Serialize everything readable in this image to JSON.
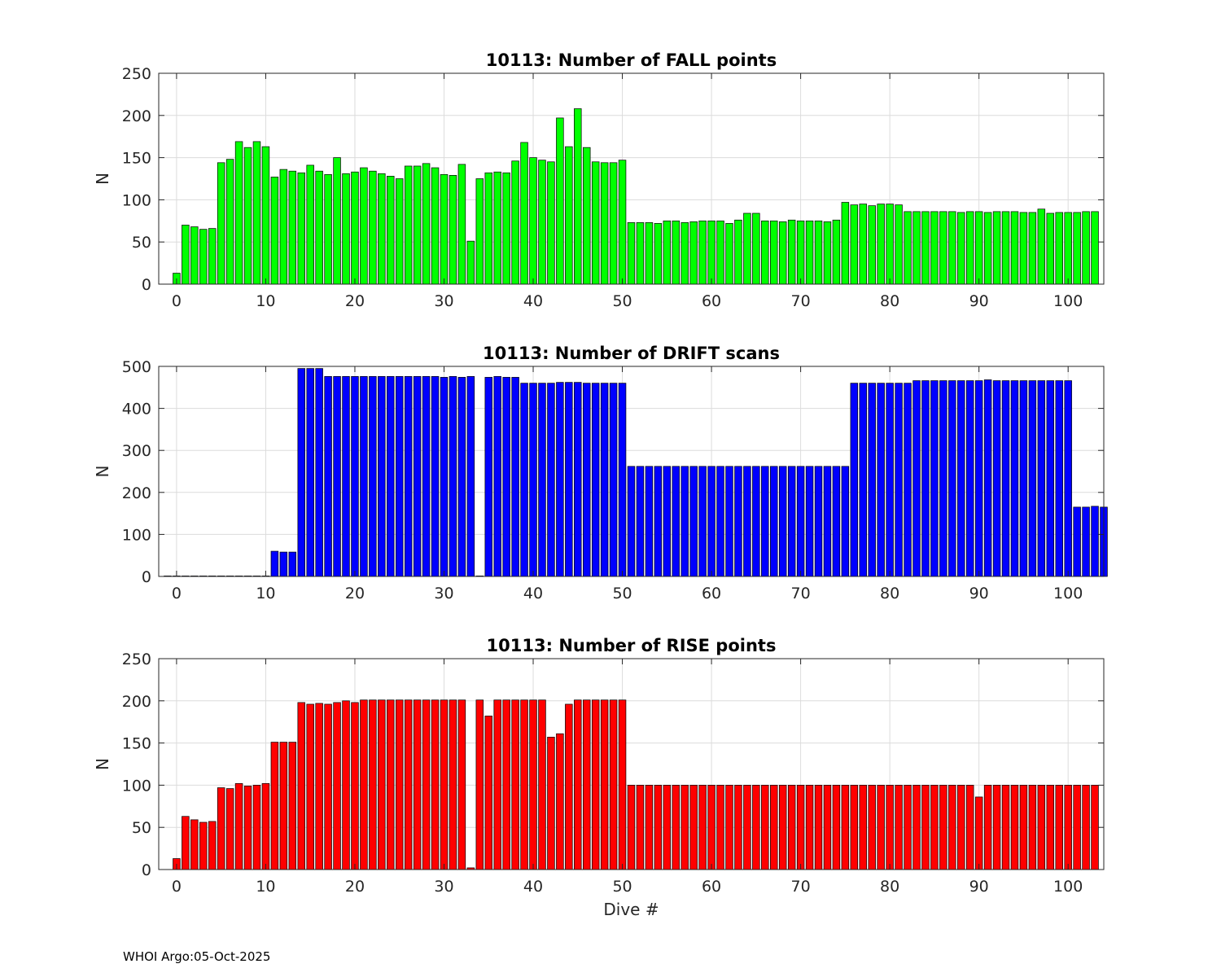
{
  "footer": "WHOI Argo:05-Oct-2025",
  "chart_data": [
    {
      "type": "bar",
      "title": "10113: Number of FALL points",
      "xlabel": "",
      "ylabel": "N",
      "ylim": [
        0,
        250
      ],
      "xlim": [
        -2,
        104
      ],
      "yticks": [
        0,
        50,
        100,
        150,
        200,
        250
      ],
      "xticks": [
        0,
        10,
        20,
        30,
        40,
        50,
        60,
        70,
        80,
        90,
        100
      ],
      "grid": true,
      "color": "#00ff00",
      "x_start": 0,
      "values": [
        13,
        70,
        68,
        65,
        66,
        144,
        148,
        169,
        162,
        169,
        163,
        127,
        136,
        134,
        132,
        141,
        134,
        130,
        150,
        131,
        133,
        138,
        134,
        131,
        128,
        125,
        140,
        140,
        143,
        138,
        130,
        129,
        142,
        51,
        125,
        132,
        133,
        132,
        146,
        168,
        150,
        147,
        145,
        197,
        163,
        208,
        162,
        145,
        144,
        144,
        147,
        73,
        73,
        73,
        72,
        75,
        75,
        73,
        74,
        75,
        75,
        75,
        72,
        76,
        84,
        84,
        75,
        75,
        74,
        76,
        75,
        75,
        75,
        74,
        76,
        97,
        94,
        95,
        93,
        95,
        95,
        94,
        86,
        86,
        86,
        86,
        86,
        86,
        85,
        86,
        86,
        85,
        86,
        86,
        86,
        85,
        85,
        89,
        84,
        85,
        85,
        85,
        86,
        86
      ]
    },
    {
      "type": "bar",
      "title": "10113: Number of DRIFT scans",
      "xlabel": "",
      "ylabel": "N",
      "ylim": [
        0,
        500
      ],
      "xlim": [
        -2,
        104
      ],
      "yticks": [
        0,
        100,
        200,
        300,
        400,
        500
      ],
      "xticks": [
        0,
        10,
        20,
        30,
        40,
        50,
        60,
        70,
        80,
        90,
        100
      ],
      "grid": true,
      "color": "#0000ff",
      "x_start": -1,
      "values": [
        1,
        1,
        1,
        1,
        1,
        1,
        1,
        1,
        1,
        1,
        1,
        1,
        60,
        58,
        58,
        495,
        495,
        495,
        476,
        476,
        476,
        476,
        476,
        476,
        476,
        476,
        476,
        476,
        476,
        476,
        476,
        474,
        476,
        474,
        476,
        0,
        474,
        476,
        474,
        474,
        460,
        460,
        460,
        460,
        462,
        462,
        462,
        460,
        460,
        460,
        460,
        460,
        262,
        262,
        262,
        262,
        262,
        262,
        262,
        262,
        262,
        262,
        262,
        262,
        262,
        262,
        262,
        262,
        262,
        262,
        262,
        262,
        262,
        262,
        262,
        262,
        262,
        460,
        460,
        460,
        460,
        460,
        460,
        460,
        466,
        466,
        466,
        466,
        466,
        466,
        466,
        466,
        468,
        466,
        466,
        466,
        466,
        466,
        466,
        466,
        466,
        466,
        165,
        165,
        167,
        165
      ]
    },
    {
      "type": "bar",
      "title": "10113: Number of RISE points",
      "xlabel": "Dive #",
      "ylabel": "N",
      "ylim": [
        0,
        250
      ],
      "xlim": [
        -2,
        104
      ],
      "yticks": [
        0,
        50,
        100,
        150,
        200,
        250
      ],
      "xticks": [
        0,
        10,
        20,
        30,
        40,
        50,
        60,
        70,
        80,
        90,
        100
      ],
      "grid": true,
      "color": "#ff0000",
      "x_start": 0,
      "values": [
        13,
        63,
        59,
        56,
        57,
        97,
        96,
        102,
        99,
        100,
        102,
        151,
        151,
        151,
        198,
        196,
        197,
        196,
        198,
        200,
        198,
        201,
        201,
        201,
        201,
        201,
        201,
        201,
        201,
        201,
        201,
        201,
        201,
        2,
        201,
        182,
        201,
        201,
        201,
        201,
        201,
        201,
        157,
        161,
        196,
        201,
        201,
        201,
        201,
        201,
        201,
        100,
        100,
        100,
        100,
        100,
        100,
        100,
        100,
        100,
        100,
        100,
        100,
        100,
        100,
        100,
        100,
        100,
        100,
        100,
        100,
        100,
        100,
        100,
        100,
        100,
        100,
        100,
        100,
        100,
        100,
        100,
        100,
        100,
        100,
        100,
        100,
        100,
        100,
        100,
        86,
        100,
        100,
        100,
        100,
        100,
        100,
        100,
        100,
        100,
        100,
        100,
        100,
        100
      ]
    }
  ]
}
